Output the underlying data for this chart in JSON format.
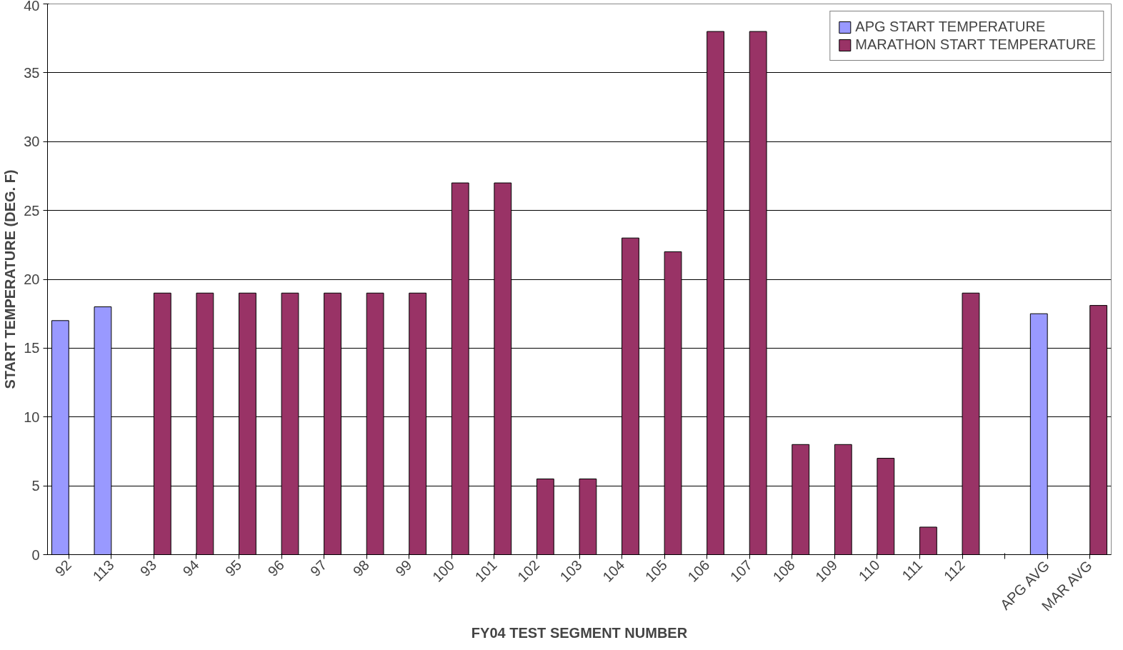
{
  "chart_data": {
    "type": "bar",
    "xlabel": "FY04 TEST SEGMENT NUMBER",
    "ylabel": "START TEMPERATURE (DEG. F)",
    "categories": [
      "92",
      "113",
      "93",
      "94",
      "95",
      "96",
      "97",
      "98",
      "99",
      "100",
      "101",
      "102",
      "103",
      "104",
      "105",
      "106",
      "107",
      "108",
      "109",
      "110",
      "111",
      "112",
      null,
      "APG AVG",
      "MAR AVG"
    ],
    "series": [
      {
        "name": "APG START TEMPERATURE",
        "color": "#9999ff",
        "values": [
          17,
          18,
          null,
          null,
          null,
          null,
          null,
          null,
          null,
          null,
          null,
          null,
          null,
          null,
          null,
          null,
          null,
          null,
          null,
          null,
          null,
          null,
          null,
          17.5,
          null
        ]
      },
      {
        "name": "MARATHON START TEMPERATURE",
        "color": "#993366",
        "values": [
          null,
          null,
          19,
          19,
          19,
          19,
          19,
          19,
          19,
          27,
          27,
          5.5,
          5.5,
          23,
          22,
          38,
          38,
          8,
          8,
          7,
          2,
          19,
          null,
          null,
          18.1
        ]
      }
    ],
    "ylim": [
      0,
      40
    ],
    "yticks": [
      0,
      5,
      10,
      15,
      20,
      25,
      30,
      35,
      40
    ],
    "grid": "y",
    "legend": "top right"
  }
}
